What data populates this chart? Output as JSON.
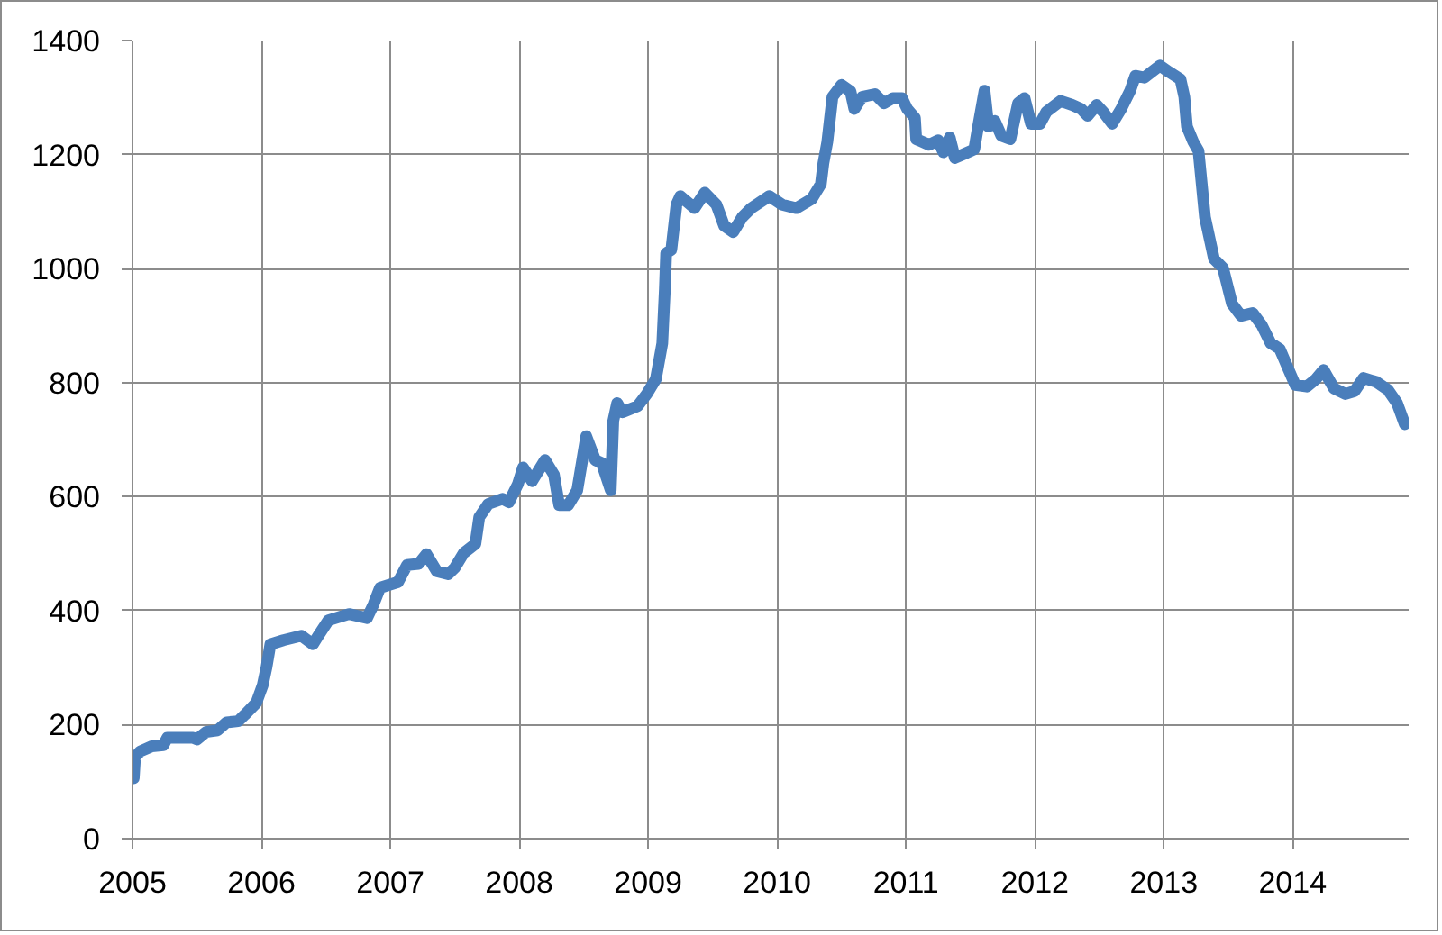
{
  "chart_data": {
    "type": "line",
    "x": [
      2005.01,
      2005.02,
      2005.06,
      2005.15,
      2005.24,
      2005.27,
      2005.47,
      2005.5,
      2005.57,
      2005.66,
      2005.73,
      2005.82,
      2005.87,
      2005.96,
      2006.01,
      2006.04,
      2006.07,
      2006.17,
      2006.31,
      2006.4,
      2006.45,
      2006.52,
      2006.68,
      2006.82,
      2006.87,
      2006.92,
      2007.06,
      2007.13,
      2007.22,
      2007.28,
      2007.36,
      2007.45,
      2007.5,
      2007.57,
      2007.66,
      2007.69,
      2007.76,
      2007.87,
      2007.92,
      2007.99,
      2008.03,
      2008.1,
      2008.2,
      2008.27,
      2008.31,
      2008.38,
      2008.45,
      2008.52,
      2008.59,
      2008.64,
      2008.71,
      2008.73,
      2008.76,
      2008.8,
      2008.92,
      2008.99,
      2009.06,
      2009.11,
      2009.13,
      2009.14,
      2009.18,
      2009.22,
      2009.25,
      2009.36,
      2009.44,
      2009.53,
      2009.59,
      2009.66,
      2009.73,
      2009.8,
      2009.94,
      2010.04,
      2010.15,
      2010.27,
      2010.34,
      2010.36,
      2010.39,
      2010.43,
      2010.5,
      2010.57,
      2010.6,
      2010.66,
      2010.76,
      2010.83,
      2010.9,
      2010.97,
      2011.01,
      2011.07,
      2011.08,
      2011.18,
      2011.25,
      2011.29,
      2011.34,
      2011.38,
      2011.45,
      2011.53,
      2011.56,
      2011.61,
      2011.64,
      2011.69,
      2011.74,
      2011.81,
      2011.87,
      2011.92,
      2011.97,
      2012.04,
      2012.09,
      2012.2,
      2012.29,
      2012.36,
      2012.41,
      2012.48,
      2012.53,
      2012.6,
      2012.67,
      2012.74,
      2012.78,
      2012.85,
      2012.97,
      2013.04,
      2013.13,
      2013.16,
      2013.18,
      2013.23,
      2013.27,
      2013.32,
      2013.39,
      2013.46,
      2013.53,
      2013.6,
      2013.69,
      2013.76,
      2013.83,
      2013.9,
      2013.97,
      2014.02,
      2014.11,
      2014.18,
      2014.24,
      2014.32,
      2014.41,
      2014.48,
      2014.55,
      2014.65,
      2014.74,
      2014.81,
      2014.87
    ],
    "series": [
      {
        "color": "#4a7ebb",
        "values": [
          106,
          143,
          153,
          162,
          164,
          177,
          177,
          174,
          187,
          190,
          204,
          206,
          217,
          238,
          269,
          301,
          341,
          348,
          356,
          341,
          359,
          383,
          394,
          387,
          411,
          440,
          450,
          480,
          482,
          499,
          469,
          464,
          475,
          501,
          517,
          564,
          587,
          596,
          590,
          622,
          651,
          627,
          664,
          638,
          585,
          585,
          611,
          706,
          664,
          659,
          611,
          733,
          764,
          748,
          759,
          780,
          806,
          869,
          964,
          1027,
          1033,
          1112,
          1127,
          1106,
          1133,
          1112,
          1075,
          1064,
          1090,
          1106,
          1127,
          1112,
          1106,
          1122,
          1148,
          1185,
          1222,
          1301,
          1322,
          1311,
          1280,
          1301,
          1306,
          1290,
          1299,
          1299,
          1280,
          1264,
          1227,
          1217,
          1225,
          1204,
          1230,
          1194,
          1201,
          1209,
          1249,
          1312,
          1249,
          1259,
          1233,
          1227,
          1290,
          1299,
          1254,
          1254,
          1275,
          1294,
          1287,
          1280,
          1268,
          1287,
          1275,
          1254,
          1280,
          1312,
          1338,
          1335,
          1356,
          1345,
          1332,
          1301,
          1249,
          1222,
          1206,
          1090,
          1017,
          1001,
          938,
          917,
          922,
          901,
          869,
          859,
          822,
          796,
          793,
          806,
          822,
          790,
          780,
          785,
          808,
          801,
          787,
          764,
          727
        ]
      }
    ],
    "xlim": [
      2005,
      2014.9
    ],
    "xticks": [
      2005,
      2006,
      2007,
      2008,
      2009,
      2010,
      2011,
      2012,
      2013,
      2014
    ],
    "ylim": [
      0,
      1400
    ],
    "yticks": [
      0,
      200,
      400,
      600,
      800,
      1000,
      1200,
      1400
    ],
    "grid": true
  }
}
